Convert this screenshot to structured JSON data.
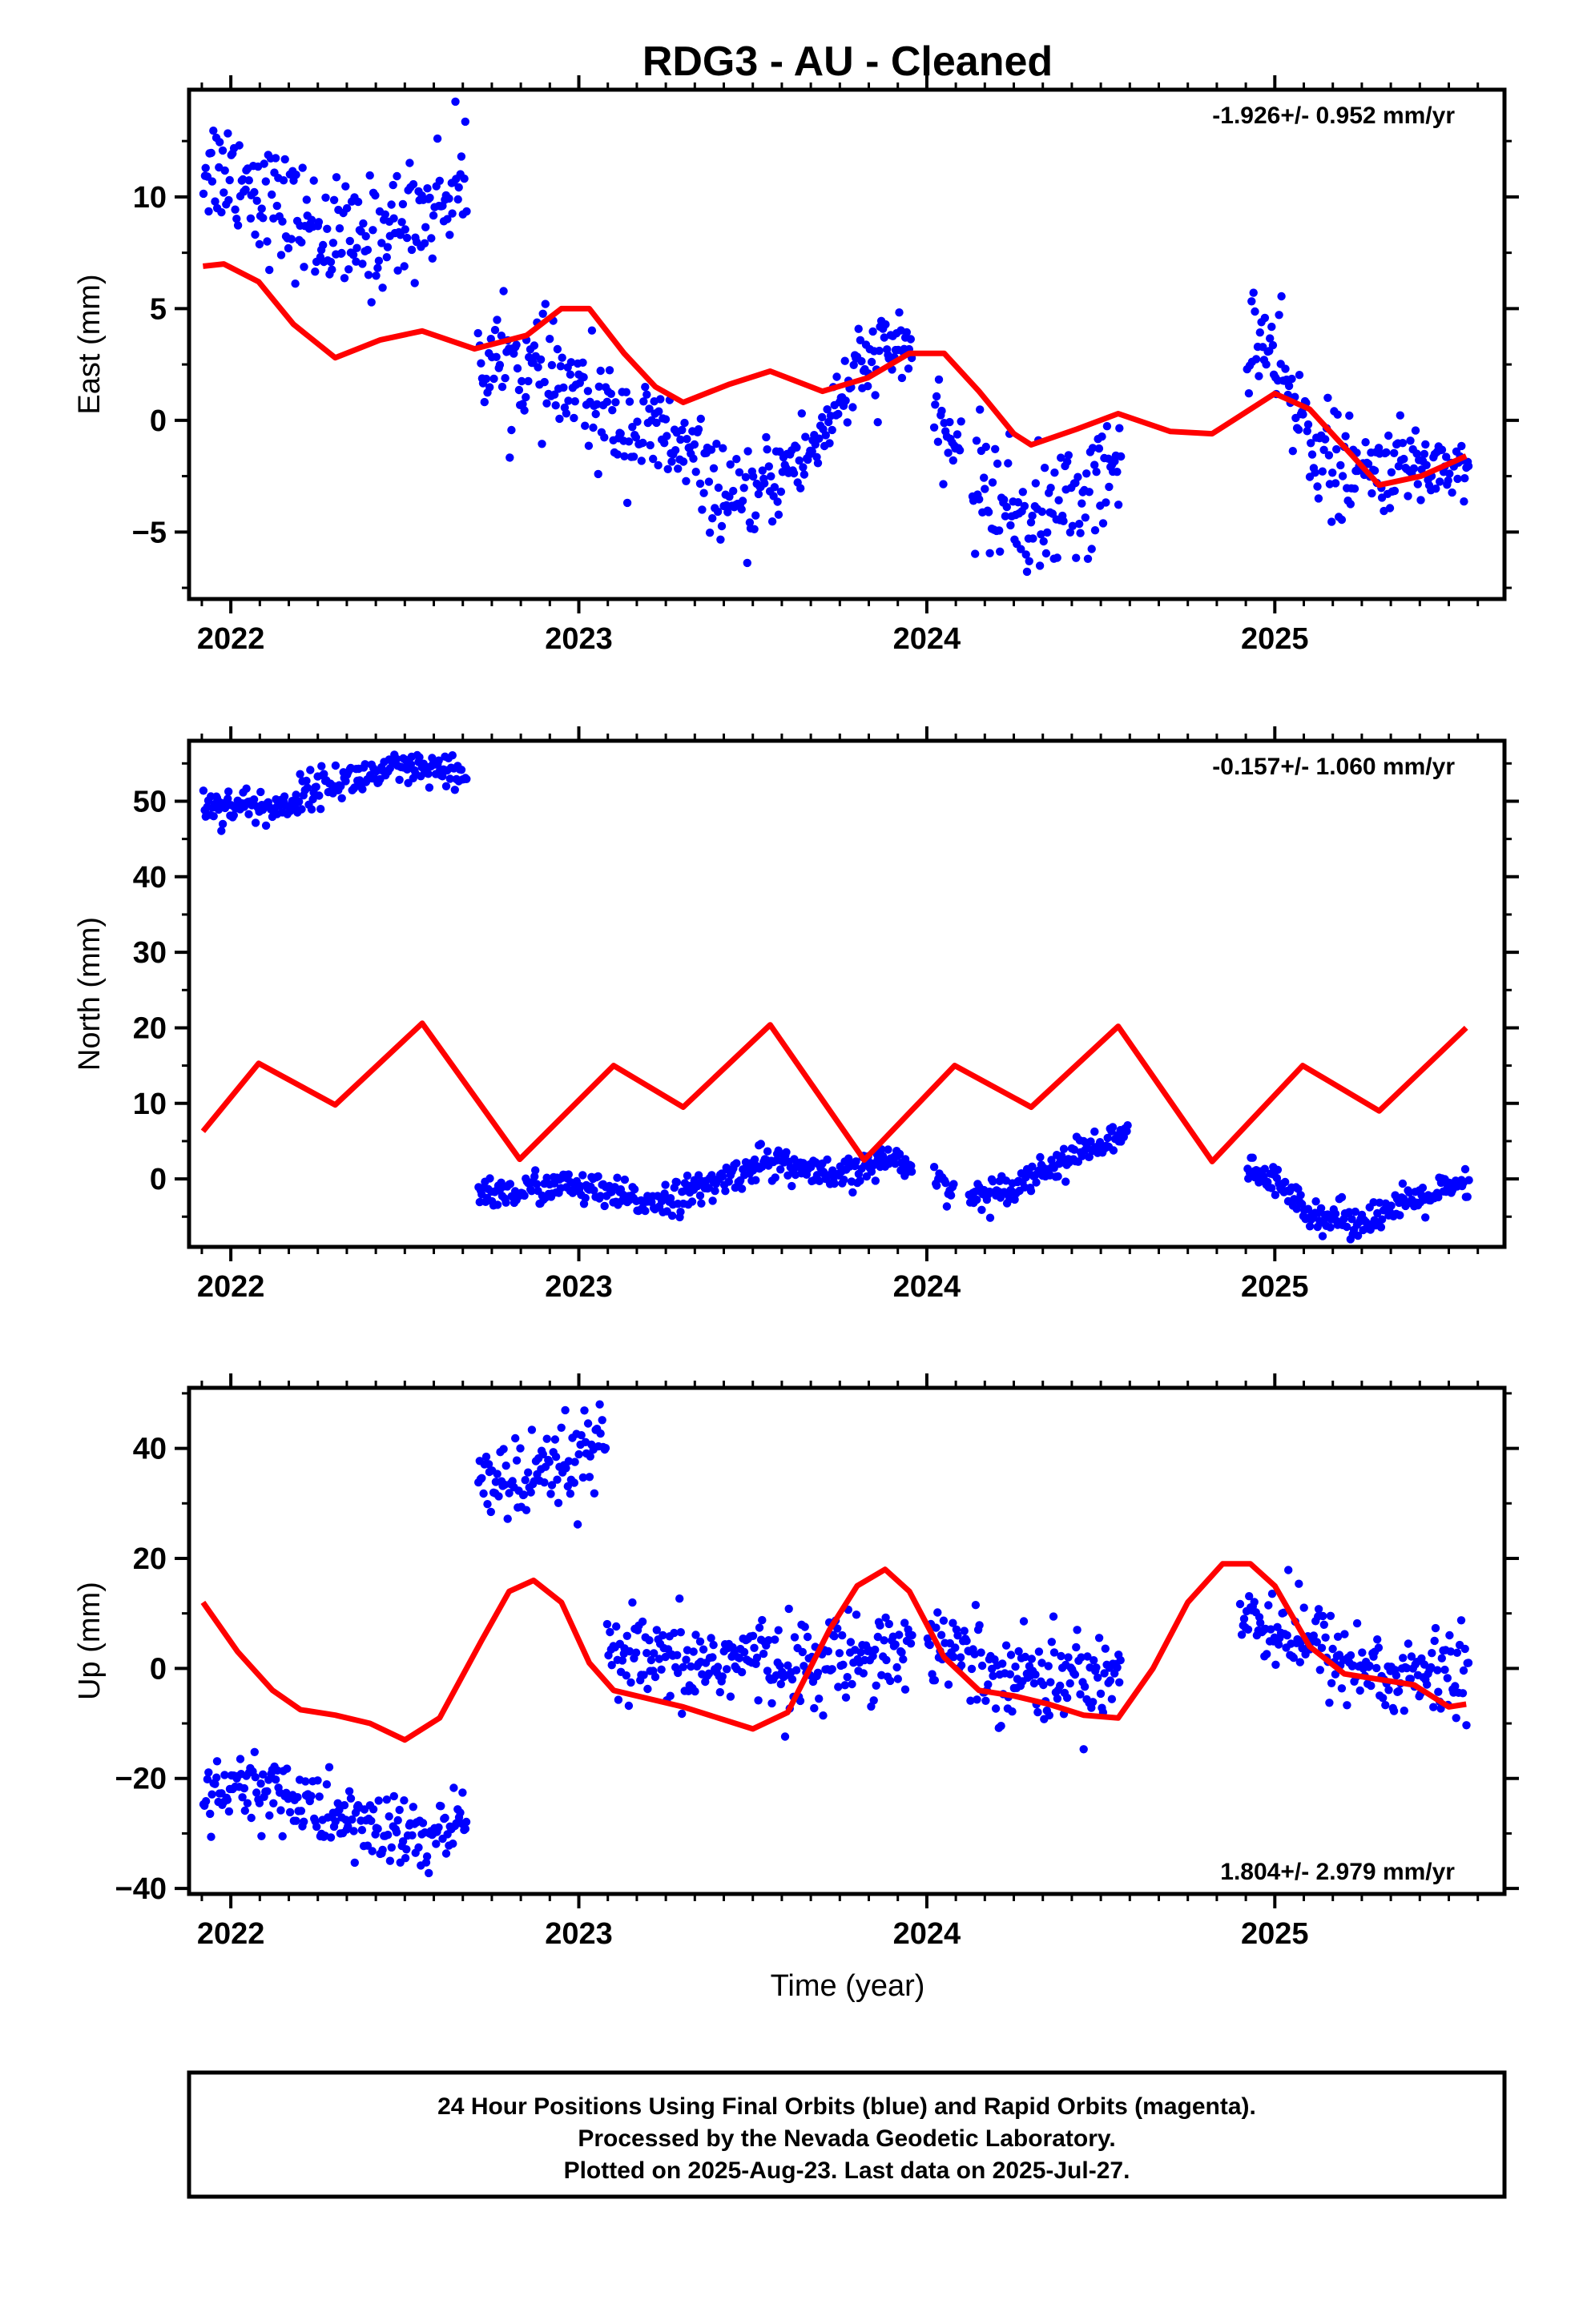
{
  "figure": {
    "title": "RDG3  - AU - Cleaned",
    "xlabel": "Time (year)",
    "footer": [
      "24 Hour Positions Using Final Orbits (blue) and Rapid Orbits (magenta).",
      "Processed by the Nevada Geodetic Laboratory.",
      "Plotted on 2025-Aug-23. Last data on 2025-Jul-27."
    ]
  },
  "colors": {
    "data": "#0000ff",
    "model": "#ff0000",
    "frame": "#000000"
  },
  "chart_data": [
    {
      "type": "scatter",
      "ylabel": "East (mm)",
      "rate_text": "-1.926+/- 0.952 mm/yr",
      "rate_position": "top-right",
      "xlim": [
        2021.88,
        2025.66
      ],
      "ylim": [
        -8,
        14.8
      ],
      "xticks": [
        2022,
        2023,
        2024,
        2025
      ],
      "yticks": [
        -5,
        0,
        5,
        10
      ],
      "segments": [
        {
          "start": 2021.92,
          "end": 2022.68,
          "trend": [
            11.5,
            11.0,
            9.5,
            8.5,
            7.8,
            8.6,
            9.5,
            11.0
          ],
          "spread": 1.3
        },
        {
          "start": 2022.71,
          "end": 2023.27,
          "trend": [
            3.0,
            2.5,
            2.0,
            1.2,
            0.2,
            -0.5,
            -1.0
          ],
          "spread": 1.2
        },
        {
          "start": 2023.27,
          "end": 2023.65,
          "trend": [
            -1.0,
            -1.8,
            -3.0,
            -4.2,
            -3.2,
            -2.2,
            -1.5
          ],
          "spread": 1.0
        },
        {
          "start": 2023.65,
          "end": 2023.96,
          "trend": [
            -2.0,
            0.0,
            1.5,
            2.5,
            3.2,
            3.6
          ],
          "spread": 1.0
        },
        {
          "start": 2024.02,
          "end": 2024.1,
          "trend": [
            -0.5,
            -1.2
          ],
          "spread": 0.8
        },
        {
          "start": 2024.13,
          "end": 2024.56,
          "trend": [
            -2.5,
            -3.8,
            -4.5,
            -4.0,
            -3.2,
            -2.0
          ],
          "spread": 1.4
        },
        {
          "start": 2024.92,
          "end": 2025.22,
          "trend": [
            4.2,
            3.2,
            1.0,
            -0.5,
            -2.0,
            -2.5
          ],
          "spread": 1.2
        },
        {
          "start": 2025.22,
          "end": 2025.56,
          "trend": [
            -2.5,
            -2.2,
            -2.0,
            -2.0,
            -2.1
          ],
          "spread": 0.9
        }
      ],
      "model": {
        "x": [
          2021.92,
          2021.98,
          2022.08,
          2022.18,
          2022.3,
          2022.43,
          2022.55,
          2022.7,
          2022.85,
          2022.95,
          2023.03,
          2023.13,
          2023.22,
          2023.3,
          2023.43,
          2023.55,
          2023.7,
          2023.83,
          2023.95,
          2024.05,
          2024.15,
          2024.25,
          2024.3,
          2024.43,
          2024.55,
          2024.7,
          2024.82,
          2024.9,
          2025.0,
          2025.1,
          2025.2,
          2025.3,
          2025.42,
          2025.55
        ],
        "y": [
          6.9,
          7.0,
          6.2,
          4.3,
          2.8,
          3.6,
          4.0,
          3.2,
          3.8,
          5.0,
          5.0,
          3.0,
          1.5,
          0.8,
          1.6,
          2.2,
          1.3,
          1.9,
          3.0,
          3.0,
          1.3,
          -0.6,
          -1.1,
          -0.4,
          0.3,
          -0.5,
          -0.6,
          0.2,
          1.2,
          0.5,
          -1.2,
          -2.9,
          -2.5,
          -1.6
        ]
      }
    },
    {
      "type": "scatter",
      "ylabel": "North (mm)",
      "rate_text": "-0.157+/- 1.060 mm/yr",
      "rate_position": "top-right",
      "xlim": [
        2021.88,
        2025.66
      ],
      "ylim": [
        -9,
        58
      ],
      "xticks": [
        2022,
        2023,
        2024,
        2025
      ],
      "yticks": [
        0,
        10,
        20,
        30,
        40,
        50
      ],
      "segments": [
        {
          "start": 2021.92,
          "end": 2022.68,
          "trend": [
            49.5,
            49.5,
            49.0,
            52.0,
            53.0,
            54.0,
            54.0,
            53.0
          ],
          "spread": 1.2
        },
        {
          "start": 2022.71,
          "end": 2023.72,
          "trend": [
            -1.5,
            -2.0,
            -1.0,
            -1.0,
            -2.0,
            -3.0,
            -2.5,
            -1.5,
            0.5,
            2.5,
            1.5,
            0.0
          ],
          "spread": 1.1
        },
        {
          "start": 2023.72,
          "end": 2023.96,
          "trend": [
            0.0,
            1.0,
            2.5,
            2.5
          ],
          "spread": 1.0
        },
        {
          "start": 2024.02,
          "end": 2024.08,
          "trend": [
            -0.5,
            -1.0
          ],
          "spread": 1.0
        },
        {
          "start": 2024.12,
          "end": 2024.58,
          "trend": [
            -2.5,
            -1.5,
            0.5,
            2.5,
            4.5,
            5.5
          ],
          "spread": 1.0
        },
        {
          "start": 2024.92,
          "end": 2025.56,
          "trend": [
            1.5,
            -1.5,
            -5.0,
            -5.5,
            -4.0,
            -2.0,
            -1.0
          ],
          "spread": 1.1
        }
      ],
      "model": {
        "x": [
          2021.92,
          2022.08,
          2022.3,
          2022.55,
          2022.83,
          2023.1,
          2023.3,
          2023.55,
          2023.82,
          2024.08,
          2024.3,
          2024.55,
          2024.82,
          2025.08,
          2025.3,
          2025.55
        ],
        "y": [
          6.3,
          15.3,
          9.8,
          20.6,
          2.6,
          15.0,
          9.5,
          20.4,
          2.5,
          15.0,
          9.5,
          20.2,
          2.3,
          15.0,
          9.0,
          20.0
        ]
      }
    },
    {
      "type": "scatter",
      "ylabel": "Up (mm)",
      "rate_text": "1.804+/- 2.979 mm/yr",
      "rate_position": "bottom-right",
      "xlim": [
        2021.88,
        2025.66
      ],
      "ylim": [
        -41,
        51
      ],
      "xticks": [
        2022,
        2023,
        2024,
        2025
      ],
      "yticks": [
        -40,
        -20,
        0,
        20,
        40
      ],
      "segments": [
        {
          "start": 2021.92,
          "end": 2022.68,
          "trend": [
            -24.0,
            -22.0,
            -22.0,
            -26.0,
            -28.0,
            -30.0,
            -31.0,
            -28.0
          ],
          "spread": 3.5
        },
        {
          "start": 2022.71,
          "end": 2023.08,
          "trend": [
            37.0,
            33.0,
            34.0,
            38.0,
            40.0
          ],
          "spread": 4.0
        },
        {
          "start": 2023.08,
          "end": 2023.96,
          "trend": [
            3.0,
            1.0,
            0.0,
            1.0,
            2.0,
            1.0,
            0.5,
            2.0,
            4.0,
            3.0
          ],
          "spread": 4.0
        },
        {
          "start": 2024.0,
          "end": 2024.56,
          "trend": [
            6.0,
            3.0,
            0.0,
            -1.0,
            -2.0,
            -1.0,
            0.0
          ],
          "spread": 4.0
        },
        {
          "start": 2024.9,
          "end": 2025.56,
          "trend": [
            10.0,
            8.0,
            4.0,
            1.0,
            -2.0,
            -1.0,
            -2.0
          ],
          "spread": 4.0
        }
      ],
      "model": {
        "x": [
          2021.92,
          2022.02,
          2022.12,
          2022.2,
          2022.3,
          2022.4,
          2022.5,
          2022.6,
          2022.72,
          2022.8,
          2022.87,
          2022.95,
          2023.03,
          2023.1,
          2023.2,
          2023.3,
          2023.4,
          2023.5,
          2023.6,
          2023.72,
          2023.8,
          2023.88,
          2023.95,
          2024.05,
          2024.15,
          2024.25,
          2024.35,
          2024.45,
          2024.55,
          2024.65,
          2024.75,
          2024.85,
          2024.93,
          2025.0,
          2025.1,
          2025.2,
          2025.3,
          2025.4,
          2025.5,
          2025.55
        ],
        "y": [
          12.0,
          3.0,
          -4.0,
          -7.5,
          -8.5,
          -10.0,
          -13.0,
          -9.0,
          5.0,
          14.0,
          16.0,
          12.0,
          1.0,
          -4.0,
          -5.5,
          -7.0,
          -9.0,
          -11.0,
          -8.0,
          7.0,
          15.0,
          18.0,
          14.0,
          2.0,
          -4.0,
          -5.0,
          -6.5,
          -8.5,
          -9.0,
          0.0,
          12.0,
          19.0,
          19.0,
          15.0,
          4.0,
          -1.0,
          -2.0,
          -3.0,
          -7.0,
          -6.5
        ]
      }
    }
  ]
}
